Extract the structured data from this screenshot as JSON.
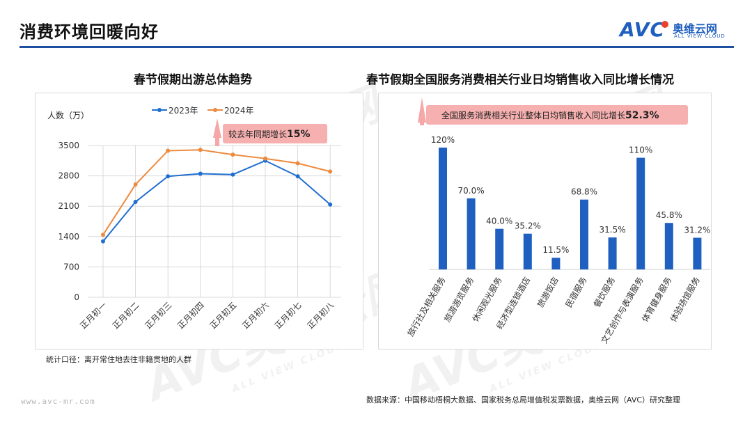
{
  "page": {
    "title": "消费环境回暖向好",
    "brand": {
      "logo_text": "AVC",
      "name_cn": "奥维云网",
      "name_en": "ALL VIEW CLOUD"
    },
    "website": "www.avc-mr.com",
    "watermark": {
      "logo": "AVC奥维云网",
      "sub": "ALL VIEW CLOUD"
    },
    "colors": {
      "accent": "#1f4fa0",
      "series_2023": "#1f6fd1",
      "series_2024": "#ed8a3e",
      "bar": "#1f5fbf",
      "callout": "#f6a7a7"
    }
  },
  "left_chart": {
    "title": "春节假期出游总体趋势",
    "stat_note": "统计口径：离开常住地去往非籍贯地的人群",
    "callout_prefix": "较去年同期增长",
    "callout_value": "15%"
  },
  "right_chart": {
    "title": "春节假期全国服务消费相关行业日均销售收入同比增长情况",
    "callout_prefix": "全国服务消费相关行业整体日均销售收入同比增长",
    "callout_value": "52.3%",
    "source": "数据来源：中国移动梧桐大数据、国家税务总局增值税发票数据，奥维云网（AVC）研究整理"
  },
  "chart_data": [
    {
      "type": "line",
      "ylabel": "人数（万）",
      "x": [
        "正月初一",
        "正月初二",
        "正月初三",
        "正月初四",
        "正月初五",
        "正月初六",
        "正月初七",
        "正月初八"
      ],
      "yticks": [
        0,
        700,
        1400,
        2100,
        2800,
        3500
      ],
      "ylim": [
        0,
        3500
      ],
      "grid": true,
      "legend": "top",
      "series": [
        {
          "name": "2023年",
          "values": [
            1290,
            2200,
            2790,
            2850,
            2830,
            3150,
            2790,
            2140
          ]
        },
        {
          "name": "2024年",
          "values": [
            1440,
            2600,
            3380,
            3400,
            3290,
            3200,
            3090,
            2900
          ]
        }
      ]
    },
    {
      "type": "bar",
      "categories": [
        "旅行社及相关服务",
        "旅游游览服务",
        "休闲观光服务",
        "经济型连锁酒店",
        "旅游饭店",
        "民宿服务",
        "餐饮服务",
        "文艺创作与表演服务",
        "体育健身服务",
        "体验场馆服务"
      ],
      "values": [
        120,
        70.0,
        40.0,
        35.2,
        11.5,
        68.8,
        31.5,
        110,
        45.8,
        31.2
      ],
      "labels": [
        "120%",
        "70.0%",
        "40.0%",
        "35.2%",
        "11.5%",
        "68.8%",
        "31.5%",
        "110%",
        "45.8%",
        "31.2%"
      ],
      "ylim": [
        0,
        120
      ],
      "grid": false
    }
  ]
}
